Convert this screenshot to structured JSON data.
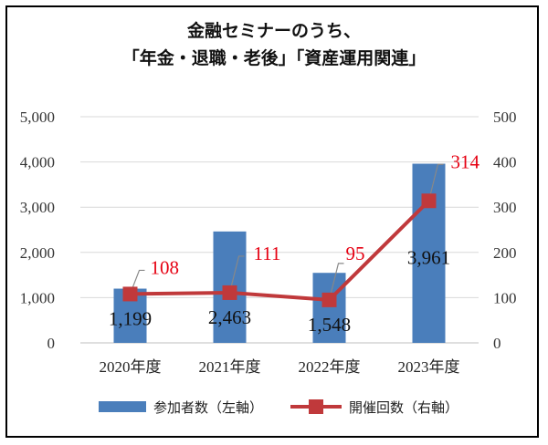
{
  "chart_data": {
    "type": "bar",
    "title_lines": [
      "金融セミナーのうち、",
      "「年金・退職・老後」「資産運用関連」"
    ],
    "categories": [
      "2020年度",
      "2021年度",
      "2022年度",
      "2023年度"
    ],
    "series": [
      {
        "name": "参加者数（左軸）",
        "type": "bar",
        "axis": "left",
        "values": [
          1199,
          2463,
          1548,
          3961
        ],
        "labels": [
          "1,199",
          "2,463",
          "1,548",
          "3,961"
        ],
        "color": "#4a7ebb"
      },
      {
        "name": "開催回数（右軸）",
        "type": "line",
        "axis": "right",
        "values": [
          108,
          111,
          95,
          314
        ],
        "labels": [
          "108",
          "111",
          "95",
          "314"
        ],
        "color": "#c0393b",
        "label_color": "#e60012"
      }
    ],
    "left_axis": {
      "ylim": [
        0,
        5000
      ],
      "ticks": [
        "0",
        "1,000",
        "2,000",
        "3,000",
        "4,000",
        "5,000"
      ]
    },
    "right_axis": {
      "ylim": [
        0,
        500
      ],
      "ticks": [
        "0",
        "100",
        "200",
        "300",
        "400",
        "500"
      ]
    },
    "grid": true,
    "legend_position": "bottom"
  }
}
